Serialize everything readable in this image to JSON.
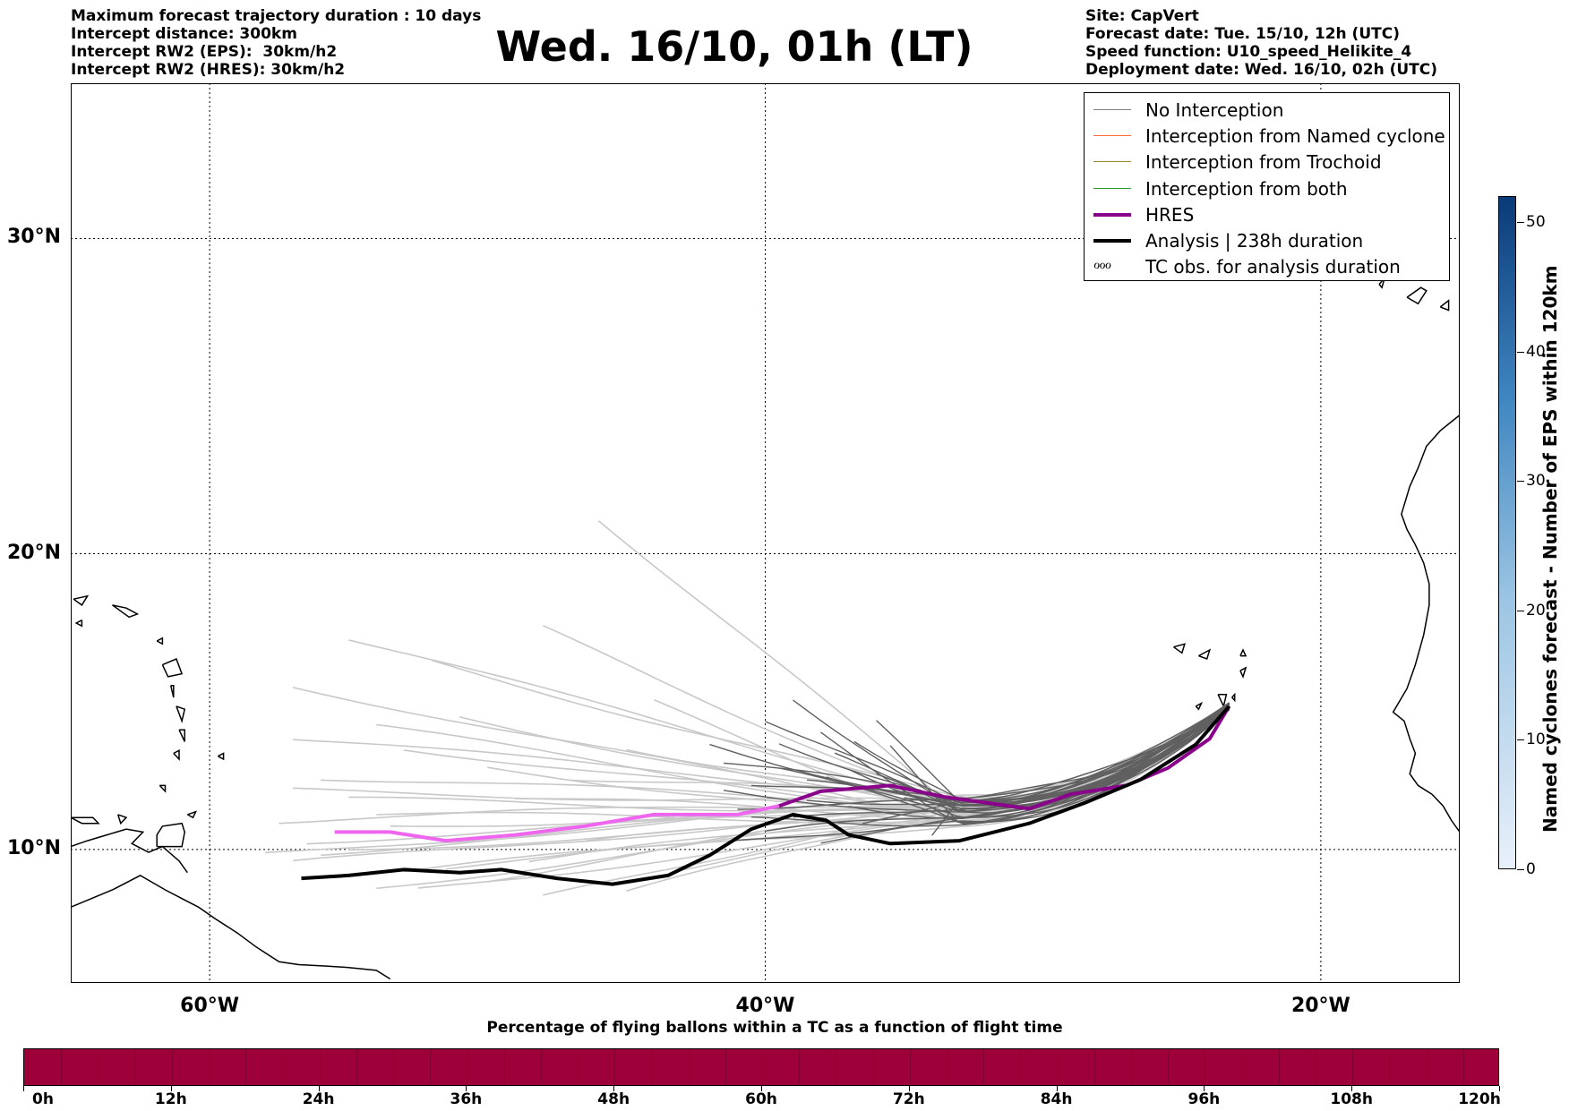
{
  "header": {
    "left_lines": [
      "Maximum forecast trajectory duration : 10 days",
      "Intercept distance: 300km",
      "Intercept RW2 (EPS):  30km/h2",
      "Intercept RW2 (HRES): 30km/h2"
    ],
    "title": "Wed. 16/10, 01h (LT)",
    "right_lines": [
      "Site: CapVert",
      "Forecast date: Tue. 15/10, 12h (UTC)",
      "Speed function: U10_speed_Helikite_4",
      "Deployment date: Wed. 16/10, 02h (UTC)"
    ]
  },
  "map": {
    "lat_labels": [
      "30°N",
      "20°N",
      "10°N"
    ],
    "lon_labels": [
      "60°W",
      "40°W",
      "20°W"
    ],
    "lon_range": [
      -65,
      -15
    ],
    "lat_range": [
      5.36,
      34.6
    ]
  },
  "legend": {
    "items": [
      {
        "label": "No Interception",
        "color": "#808080",
        "width": 1.5,
        "kind": "line"
      },
      {
        "label": "Interception from Named cyclone",
        "color": "#ff6a3d",
        "width": 1.5,
        "kind": "line"
      },
      {
        "label": "Interception from Trochoid",
        "color": "#9c8a2a",
        "width": 1.5,
        "kind": "line"
      },
      {
        "label": "Interception from both",
        "color": "#2a9a2a",
        "width": 1.5,
        "kind": "line"
      },
      {
        "label": "HRES",
        "color": "#8b008b",
        "width": 4,
        "kind": "line"
      },
      {
        "label": "Analysis | 238h duration",
        "color": "#000000",
        "width": 4,
        "kind": "line"
      },
      {
        "label": "TC obs. for analysis duration",
        "color": "#000000",
        "width": 0,
        "kind": "tc",
        "symbol": "ℴℴℴ"
      }
    ]
  },
  "right_colorbar": {
    "title": "Named cyclones forecast - Number of EPS within 120km",
    "ticks": [
      "0",
      "10",
      "20",
      "30",
      "40",
      "50"
    ],
    "tick_values": [
      0,
      10,
      20,
      30,
      40,
      50
    ],
    "max": 52,
    "color_low": "#e8f0fa",
    "color_high": "#0a3a78"
  },
  "bottom_colorbar": {
    "title": "Percentage of flying ballons within a TC as a function of flight time",
    "ticks": [
      "0h",
      "12h",
      "24h",
      "36h",
      "48h",
      "60h",
      "72h",
      "84h",
      "96h",
      "108h",
      "120h"
    ],
    "fill_color": "#9e0039"
  },
  "chart_data": {
    "type": "map-trajectories",
    "origin": {
      "lon": -23.3,
      "lat": 14.9
    },
    "hres_track": [
      [
        -55.5,
        10.6
      ],
      [
        -53.5,
        10.6
      ],
      [
        -51.5,
        10.3
      ],
      [
        -49,
        10.5
      ],
      [
        -46.5,
        10.8
      ],
      [
        -44,
        11.2
      ],
      [
        -41,
        11.2
      ],
      [
        -39.5,
        11.5
      ],
      [
        -38,
        12.0
      ],
      [
        -35.5,
        12.2
      ],
      [
        -33.5,
        11.8
      ],
      [
        -32,
        11.6
      ],
      [
        -30.5,
        11.4
      ],
      [
        -29,
        11.9
      ],
      [
        -27,
        12.2
      ],
      [
        -25.5,
        12.8
      ],
      [
        -24,
        13.8
      ],
      [
        -23.3,
        14.9
      ]
    ],
    "analysis_track": [
      [
        -56.7,
        9.0
      ],
      [
        -55,
        9.1
      ],
      [
        -53,
        9.3
      ],
      [
        -51,
        9.2
      ],
      [
        -49.5,
        9.3
      ],
      [
        -47.5,
        9.0
      ],
      [
        -45.5,
        8.8
      ],
      [
        -43.5,
        9.1
      ],
      [
        -42,
        9.8
      ],
      [
        -40.5,
        10.7
      ],
      [
        -39,
        11.2
      ],
      [
        -37.8,
        11.0
      ],
      [
        -37,
        10.5
      ],
      [
        -35.5,
        10.2
      ],
      [
        -33,
        10.3
      ],
      [
        -30.5,
        10.9
      ],
      [
        -28.5,
        11.6
      ],
      [
        -26.5,
        12.4
      ],
      [
        -24.5,
        13.6
      ],
      [
        -23.3,
        14.9
      ]
    ],
    "eps_endpoints_far": [
      [
        -55,
        17.2
      ],
      [
        -46,
        21.2
      ],
      [
        -57,
        15.6
      ],
      [
        -52,
        16.4
      ],
      [
        -48,
        17.5
      ],
      [
        -54,
        14.2
      ],
      [
        -57,
        13.8
      ],
      [
        -56,
        12.5
      ],
      [
        -53,
        13.5
      ],
      [
        -50,
        12.8
      ],
      [
        -57,
        12.0
      ],
      [
        -55,
        11.7
      ],
      [
        -54,
        11.2
      ],
      [
        -57.5,
        11.0
      ],
      [
        -56.5,
        10.3
      ],
      [
        -55,
        10.0
      ],
      [
        -58,
        9.8
      ],
      [
        -57,
        9.5
      ],
      [
        -53,
        9.2
      ],
      [
        -51.5,
        9.4
      ],
      [
        -50,
        9.0
      ],
      [
        -54,
        8.7
      ],
      [
        -52.5,
        8.6
      ],
      [
        -48,
        8.3
      ],
      [
        -45,
        8.5
      ],
      [
        -49,
        11.8
      ],
      [
        -47,
        12.5
      ],
      [
        -45,
        13.5
      ],
      [
        -51,
        14.5
      ],
      [
        -44,
        15.0
      ],
      [
        -46.5,
        10.2
      ],
      [
        -48.5,
        9.6
      ],
      [
        -43,
        9.4
      ],
      [
        -56,
        9.9
      ],
      [
        -53.5,
        10.8
      ]
    ],
    "eps_endpoints_near": [
      [
        -41.5,
        13.0
      ],
      [
        -40,
        14.5
      ],
      [
        -39,
        15.2
      ],
      [
        -38,
        14.0
      ],
      [
        -37.5,
        13.2
      ],
      [
        -36,
        12.5
      ],
      [
        -39.5,
        12.8
      ],
      [
        -40.5,
        12.3
      ],
      [
        -38.5,
        11.8
      ],
      [
        -37,
        11.5
      ],
      [
        -36.5,
        10.8
      ],
      [
        -39,
        11.0
      ],
      [
        -40,
        10.6
      ],
      [
        -38,
        10.3
      ],
      [
        -41,
        11.5
      ],
      [
        -37,
        12.8
      ],
      [
        -35.5,
        13.5
      ],
      [
        -36,
        14.3
      ],
      [
        -34.5,
        12.0
      ],
      [
        -33.5,
        11.2
      ],
      [
        -34,
        10.6
      ],
      [
        -39.5,
        13.7
      ],
      [
        -41.5,
        12.0
      ],
      [
        -40.5,
        11.0
      ],
      [
        -38.5,
        12.3
      ],
      [
        -35,
        11.8
      ],
      [
        -37.8,
        12.6
      ],
      [
        -36.8,
        13.8
      ],
      [
        -42,
        13.6
      ],
      [
        -41.2,
        10.2
      ]
    ]
  }
}
